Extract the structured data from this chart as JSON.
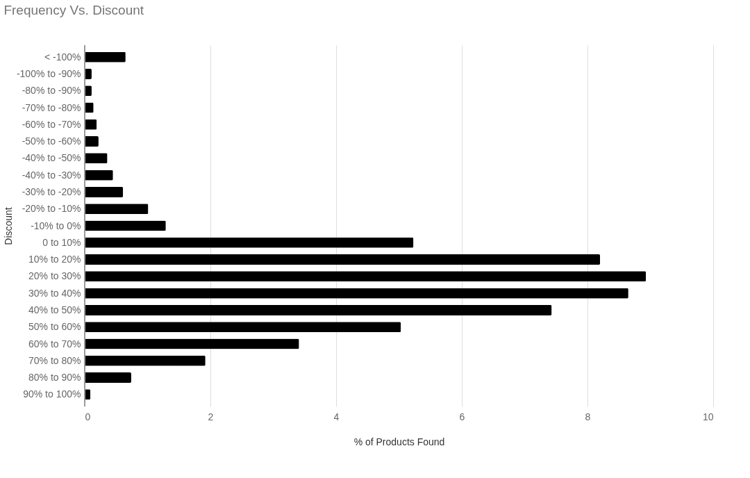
{
  "chart_data": {
    "type": "bar",
    "orientation": "horizontal",
    "title": "Frequency Vs. Discount",
    "xlabel": "% of Products Found",
    "ylabel": "Discount",
    "categories": [
      "< -100%",
      "-100% to -90%",
      "-80% to -90%",
      "-70% to -80%",
      "-60% to -70%",
      "-50% to -60%",
      "-40% to -50%",
      "-40% to -30%",
      "-30% to -20%",
      "-20% to -10%",
      "-10% to 0%",
      "0 to 10%",
      "10% to 20%",
      "20% to 30%",
      "30% to 40%",
      "40% to 50%",
      "50% to 60%",
      "60% to 70%",
      "70% to 80%",
      "80% to 90%",
      "90% to 100%"
    ],
    "values": [
      0.65,
      0.11,
      0.11,
      0.14,
      0.19,
      0.22,
      0.36,
      0.45,
      0.61,
      1.01,
      1.29,
      5.23,
      8.2,
      8.93,
      8.65,
      7.43,
      5.03,
      3.41,
      1.92,
      0.74,
      0.09
    ],
    "color": "#000000",
    "xlim": [
      0,
      10
    ],
    "xticks": [
      0,
      2,
      4,
      6,
      8,
      10
    ],
    "grid": "x"
  }
}
